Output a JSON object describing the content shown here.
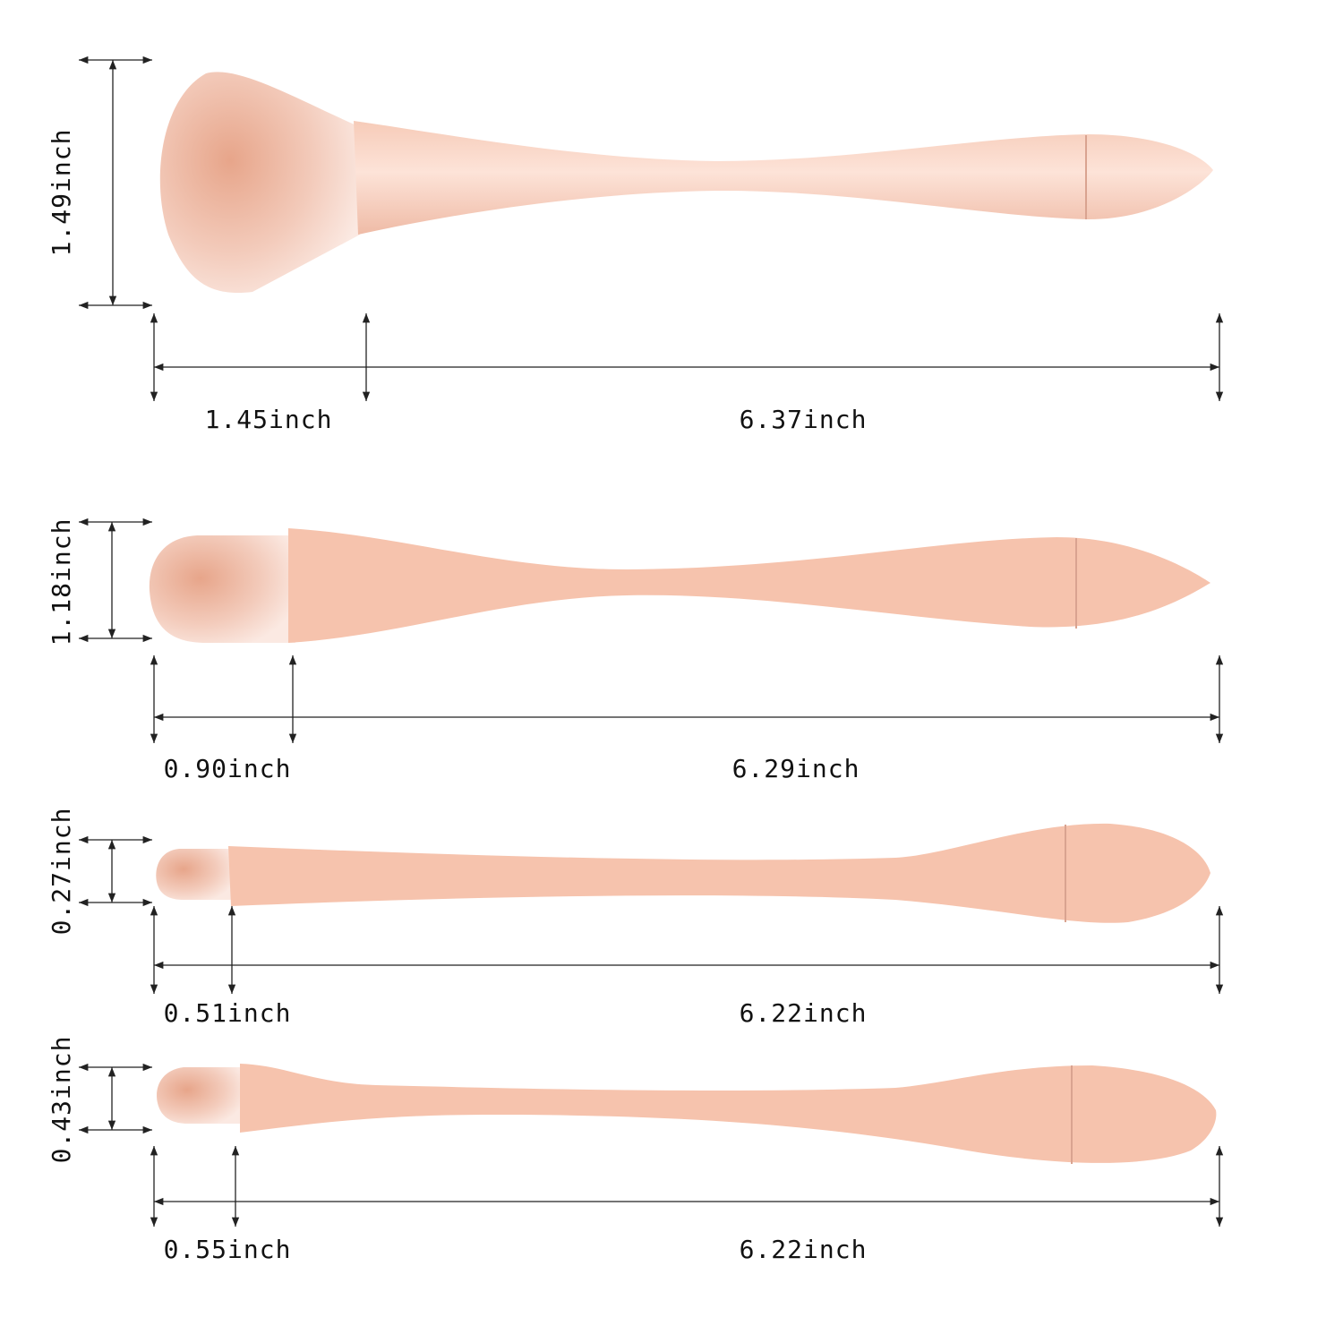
{
  "brushes": [
    {
      "height_label": "1.49inch",
      "head_label": "1.45inch",
      "length_label": "6.37inch"
    },
    {
      "height_label": "1.18inch",
      "head_label": "0.90inch",
      "length_label": "6.29inch"
    },
    {
      "height_label": "0.27inch",
      "head_label": "0.51inch",
      "length_label": "6.22inch"
    },
    {
      "height_label": "0.43inch",
      "head_label": "0.55inch",
      "length_label": "6.22inch"
    }
  ]
}
